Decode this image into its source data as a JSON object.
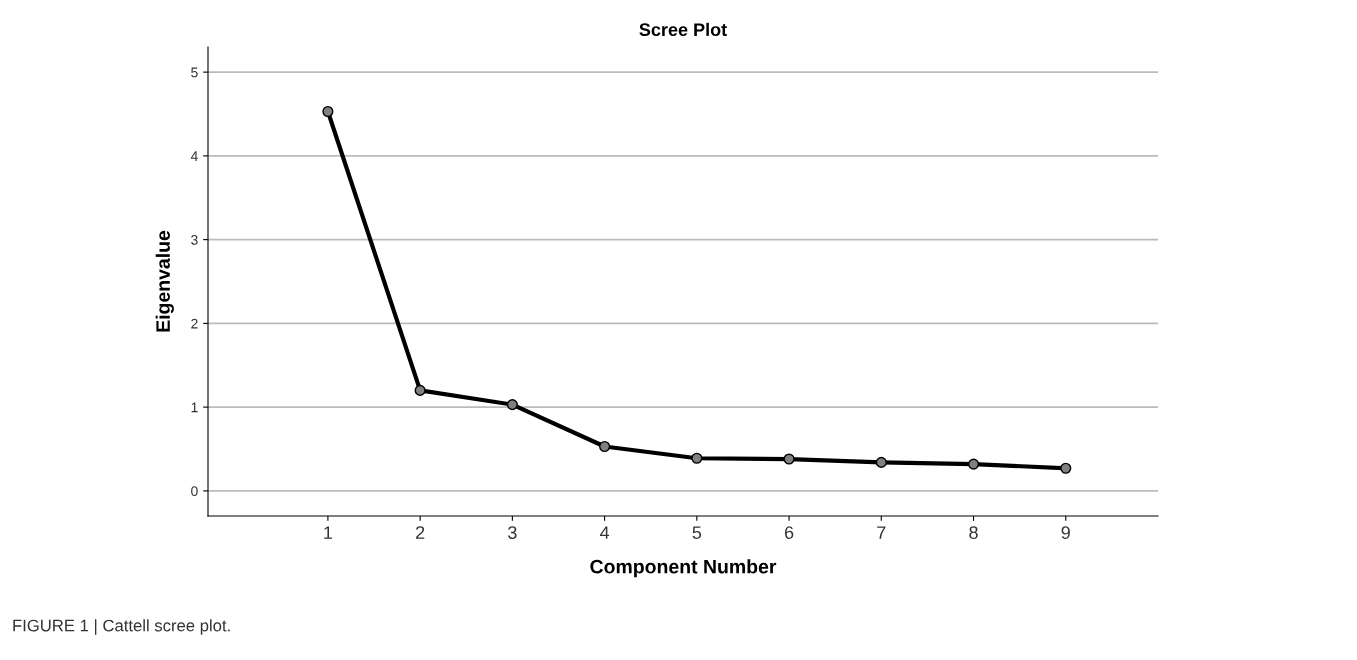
{
  "chart_data": {
    "type": "line",
    "title": "Scree Plot",
    "xlabel": "Component Number",
    "ylabel": "Eigenvalue",
    "x": [
      1,
      2,
      3,
      4,
      5,
      6,
      7,
      8,
      9
    ],
    "series": [
      {
        "color": "#000000",
        "values": [
          4.53,
          1.2,
          1.03,
          0.53,
          0.39,
          0.38,
          0.34,
          0.32,
          0.27
        ]
      }
    ],
    "xlim": [
      -0.3,
      10
    ],
    "xticks": [
      1,
      2,
      3,
      4,
      5,
      6,
      7,
      8,
      9
    ],
    "ylim": [
      -0.3,
      5.3
    ],
    "yticks": [
      0,
      1,
      2,
      3,
      4,
      5
    ],
    "grid": "y",
    "marker": "circle",
    "line_style": "solid",
    "legend": false,
    "annotations": [
      "FIGURE 1 | Cattell scree plot."
    ]
  }
}
